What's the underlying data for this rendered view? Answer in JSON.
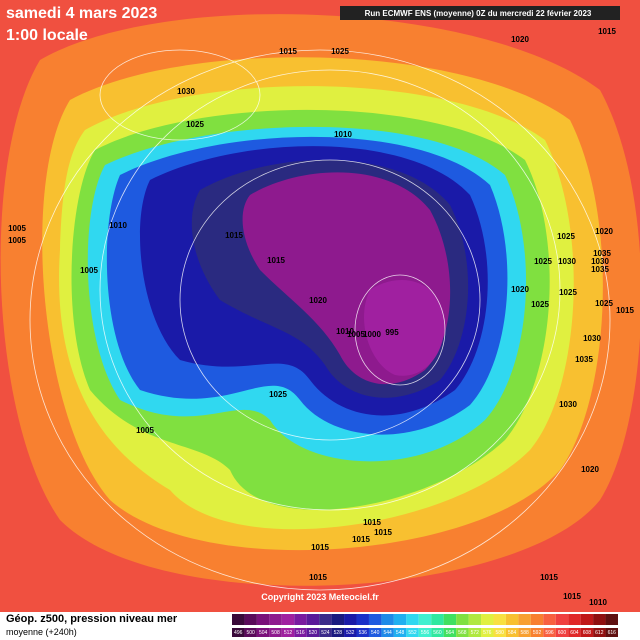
{
  "header": {
    "date": "samedi 4 mars 2023",
    "time": "1:00 locale",
    "run": "Run ECMWF ENS (moyenne) 0Z du mercredi 22 février 2023"
  },
  "footer": {
    "title": "Géop. z500, pression niveau mer",
    "subtitle": "moyenne  (+240h)",
    "copyright": "Copyright 2023 Meteociel.fr"
  },
  "isobar_labels": [
    1015,
    1025,
    1020,
    1015,
    1030,
    1025,
    1010,
    1005,
    1005,
    1010,
    1015,
    1015,
    1005,
    1020,
    1010,
    1005,
    1000,
    995,
    1025,
    1030,
    1025,
    1020,
    1025,
    1025,
    1035,
    1030,
    1035,
    1020,
    1025,
    1015,
    1030,
    1035,
    1030,
    1025,
    1005,
    1020,
    1015,
    1015,
    1015,
    1015,
    1015,
    1015,
    1015,
    1010
  ],
  "colorbar": {
    "values": [
      496,
      500,
      504,
      508,
      512,
      516,
      520,
      524,
      528,
      532,
      536,
      540,
      544,
      548,
      552,
      556,
      560,
      564,
      568,
      572,
      576,
      580,
      584,
      588,
      592,
      596,
      600,
      604,
      608,
      612,
      616
    ],
    "colors": [
      "#3a0a3a",
      "#5a0a5a",
      "#7a107a",
      "#8e1a8e",
      "#a020a0",
      "#7a1aa0",
      "#5a1a9a",
      "#3a2a8a",
      "#1a1a80",
      "#1a1aa8",
      "#1a30c8",
      "#1e5ae0",
      "#1e8ae8",
      "#20b0f0",
      "#30d8f0",
      "#40f0d0",
      "#30e8a0",
      "#40e060",
      "#80e040",
      "#b0e840",
      "#e0f040",
      "#f8e040",
      "#f8c030",
      "#f8a030",
      "#f88030",
      "#f86040",
      "#f04040",
      "#e02828",
      "#c01818",
      "#901010",
      "#601010"
    ]
  }
}
